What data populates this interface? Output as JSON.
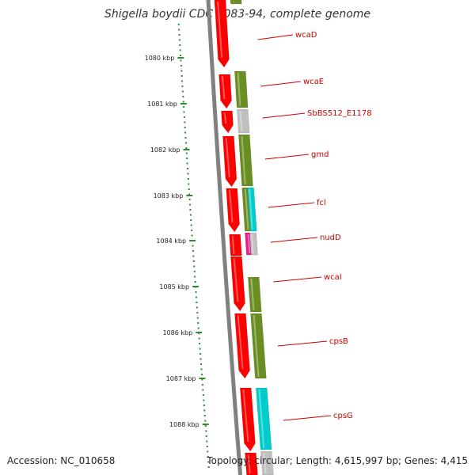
{
  "title": "Shigella boydii CDC 3083-94, complete genome",
  "footer": {
    "accession": "Accession: NC_010658",
    "stats": "Topology: circular; Length: 4,615,997 bp; Genes: 4,415"
  },
  "map": {
    "type": "genome-map",
    "kbp_ticks": [
      "1080 kbp",
      "1081 kbp",
      "1082 kbp",
      "1083 kbp",
      "1084 kbp",
      "1085 kbp",
      "1086 kbp",
      "1087 kbp",
      "1088 kbp"
    ],
    "genes": [
      "wcaD",
      "wcaE",
      "SbBS512_E1178",
      "gmd",
      "fcl",
      "nudD",
      "wcaI",
      "cpsB",
      "cpsG"
    ]
  },
  "colors": {
    "cds": "#ff0000",
    "olive": "#6b8e23",
    "gray": "#c0c0c0",
    "cyan": "#00cccc",
    "magenta": "#e0208c",
    "tick": "#2e8b2e",
    "label": "#cc0000",
    "backbone": "#808080"
  }
}
